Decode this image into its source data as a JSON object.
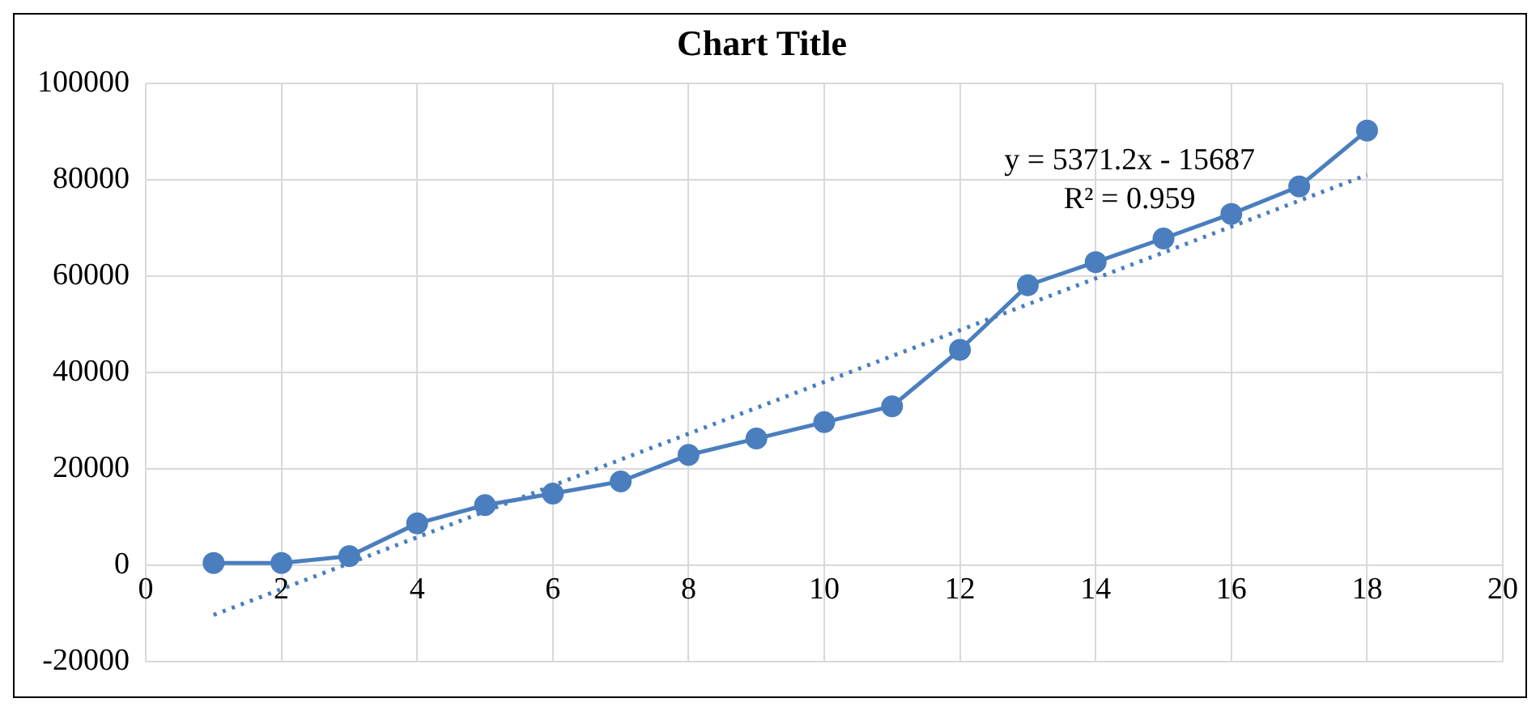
{
  "chart_data": {
    "type": "scatter",
    "title": "Chart Title",
    "xlim": [
      0,
      20
    ],
    "xticks": [
      0,
      2,
      4,
      6,
      8,
      10,
      12,
      14,
      16,
      18,
      20
    ],
    "ylim": [
      -20000,
      100000
    ],
    "yticks": [
      -20000,
      0,
      20000,
      40000,
      60000,
      80000,
      100000
    ],
    "grid": true,
    "legend": false,
    "series": [
      {
        "type": "line",
        "color": "#4a7ebf",
        "marker": "circle",
        "line_style": "solid",
        "x": [
          1,
          2,
          3,
          4,
          5,
          6,
          7,
          8,
          9,
          10,
          11,
          12,
          13,
          14,
          15,
          16,
          17,
          18
        ],
        "values": [
          500,
          500,
          1900,
          8700,
          12500,
          14900,
          17400,
          22900,
          26300,
          29700,
          33000,
          44700,
          58100,
          62900,
          67800,
          72900,
          78600,
          90200
        ]
      },
      {
        "type": "line",
        "color": "#4a7ebf",
        "marker": "none",
        "line_style": "dotted",
        "x": [
          1,
          18
        ],
        "values": [
          -10300,
          81000
        ]
      }
    ],
    "annotations": [
      "y = 5371.2x - 15687",
      "R² = 0.959"
    ]
  }
}
